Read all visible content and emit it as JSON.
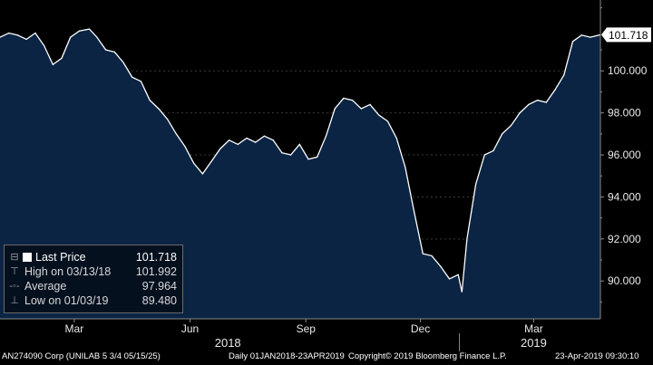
{
  "chart_data": {
    "type": "area",
    "title": "",
    "xlabel": "",
    "ylabel": "",
    "ylim": [
      88.2,
      103.2
    ],
    "y_ticks": [
      90,
      92,
      94,
      96,
      98,
      100
    ],
    "y_tick_labels": [
      "90.000",
      "92.000",
      "94.000",
      "96.000",
      "98.000",
      "100.000"
    ],
    "x_ticks": [
      {
        "date": "2018-03-01",
        "label": "Mar"
      },
      {
        "date": "2018-06-01",
        "label": "Jun"
      },
      {
        "date": "2018-09-01",
        "label": "Sep"
      },
      {
        "date": "2018-12-01",
        "label": "Dec"
      },
      {
        "date": "2019-03-01",
        "label": "Mar"
      }
    ],
    "year_labels": [
      {
        "date": "2018-07-01",
        "label": "2018"
      },
      {
        "date": "2019-03-01",
        "label": "2019"
      }
    ],
    "year_divider": "2019-01-01",
    "xlim": [
      "2018-01-01",
      "2019-04-23"
    ],
    "series": [
      {
        "name": "Last Price",
        "x": [
          "2018-01-01",
          "2018-01-08",
          "2018-01-15",
          "2018-01-22",
          "2018-01-29",
          "2018-02-05",
          "2018-02-12",
          "2018-02-19",
          "2018-02-26",
          "2018-03-05",
          "2018-03-13",
          "2018-03-19",
          "2018-03-26",
          "2018-04-02",
          "2018-04-09",
          "2018-04-16",
          "2018-04-23",
          "2018-04-30",
          "2018-05-07",
          "2018-05-14",
          "2018-05-21",
          "2018-05-28",
          "2018-06-04",
          "2018-06-11",
          "2018-06-18",
          "2018-06-25",
          "2018-07-02",
          "2018-07-09",
          "2018-07-16",
          "2018-07-23",
          "2018-07-30",
          "2018-08-06",
          "2018-08-13",
          "2018-08-20",
          "2018-08-27",
          "2018-09-03",
          "2018-09-10",
          "2018-09-17",
          "2018-09-24",
          "2018-10-01",
          "2018-10-08",
          "2018-10-15",
          "2018-10-22",
          "2018-10-29",
          "2018-11-05",
          "2018-11-12",
          "2018-11-19",
          "2018-11-26",
          "2018-12-03",
          "2018-12-10",
          "2018-12-17",
          "2018-12-24",
          "2018-12-31",
          "2019-01-03",
          "2019-01-07",
          "2019-01-14",
          "2019-01-21",
          "2019-01-28",
          "2019-02-04",
          "2019-02-11",
          "2019-02-18",
          "2019-02-25",
          "2019-03-04",
          "2019-03-11",
          "2019-03-18",
          "2019-03-25",
          "2019-04-01",
          "2019-04-08",
          "2019-04-15",
          "2019-04-23"
        ],
        "y": [
          101.6,
          101.8,
          101.7,
          101.5,
          101.8,
          101.2,
          100.3,
          100.6,
          101.6,
          101.9,
          101.99,
          101.6,
          101.0,
          100.9,
          100.4,
          99.7,
          99.5,
          98.6,
          98.2,
          97.7,
          97.0,
          96.4,
          95.6,
          95.1,
          95.7,
          96.3,
          96.7,
          96.5,
          96.8,
          96.6,
          96.9,
          96.7,
          96.1,
          96.0,
          96.5,
          95.8,
          95.9,
          96.9,
          98.2,
          98.7,
          98.6,
          98.2,
          98.4,
          97.9,
          97.6,
          96.8,
          95.4,
          93.3,
          91.3,
          91.2,
          90.7,
          90.1,
          90.3,
          89.48,
          92.0,
          94.6,
          96.0,
          96.2,
          97.0,
          97.4,
          98.0,
          98.4,
          98.6,
          98.5,
          99.1,
          99.8,
          101.4,
          101.7,
          101.6,
          101.718
        ]
      }
    ]
  },
  "last_price_tag": "101.718",
  "legend": {
    "items": [
      {
        "label": "Last Price",
        "value": "101.718"
      },
      {
        "label": "High on 03/13/18",
        "value": "101.992"
      },
      {
        "label": "Average",
        "value": "97.964"
      },
      {
        "label": "Low on 01/03/19",
        "value": "89.480"
      }
    ]
  },
  "footer": {
    "security": "AN274090 Corp (UNILAB 5 3/4 05/15/25)",
    "range": "Daily 01JAN2018-23APR2019",
    "copyright": "Copyright© 2019 Bloomberg Finance L.P.",
    "timestamp": "23-Apr-2019 09:30:10"
  },
  "colors": {
    "area_fill": "#0b2444",
    "line": "#ffffff",
    "background": "#000000",
    "grid": "#3a3a3a",
    "axis": "#8a8a8a"
  }
}
